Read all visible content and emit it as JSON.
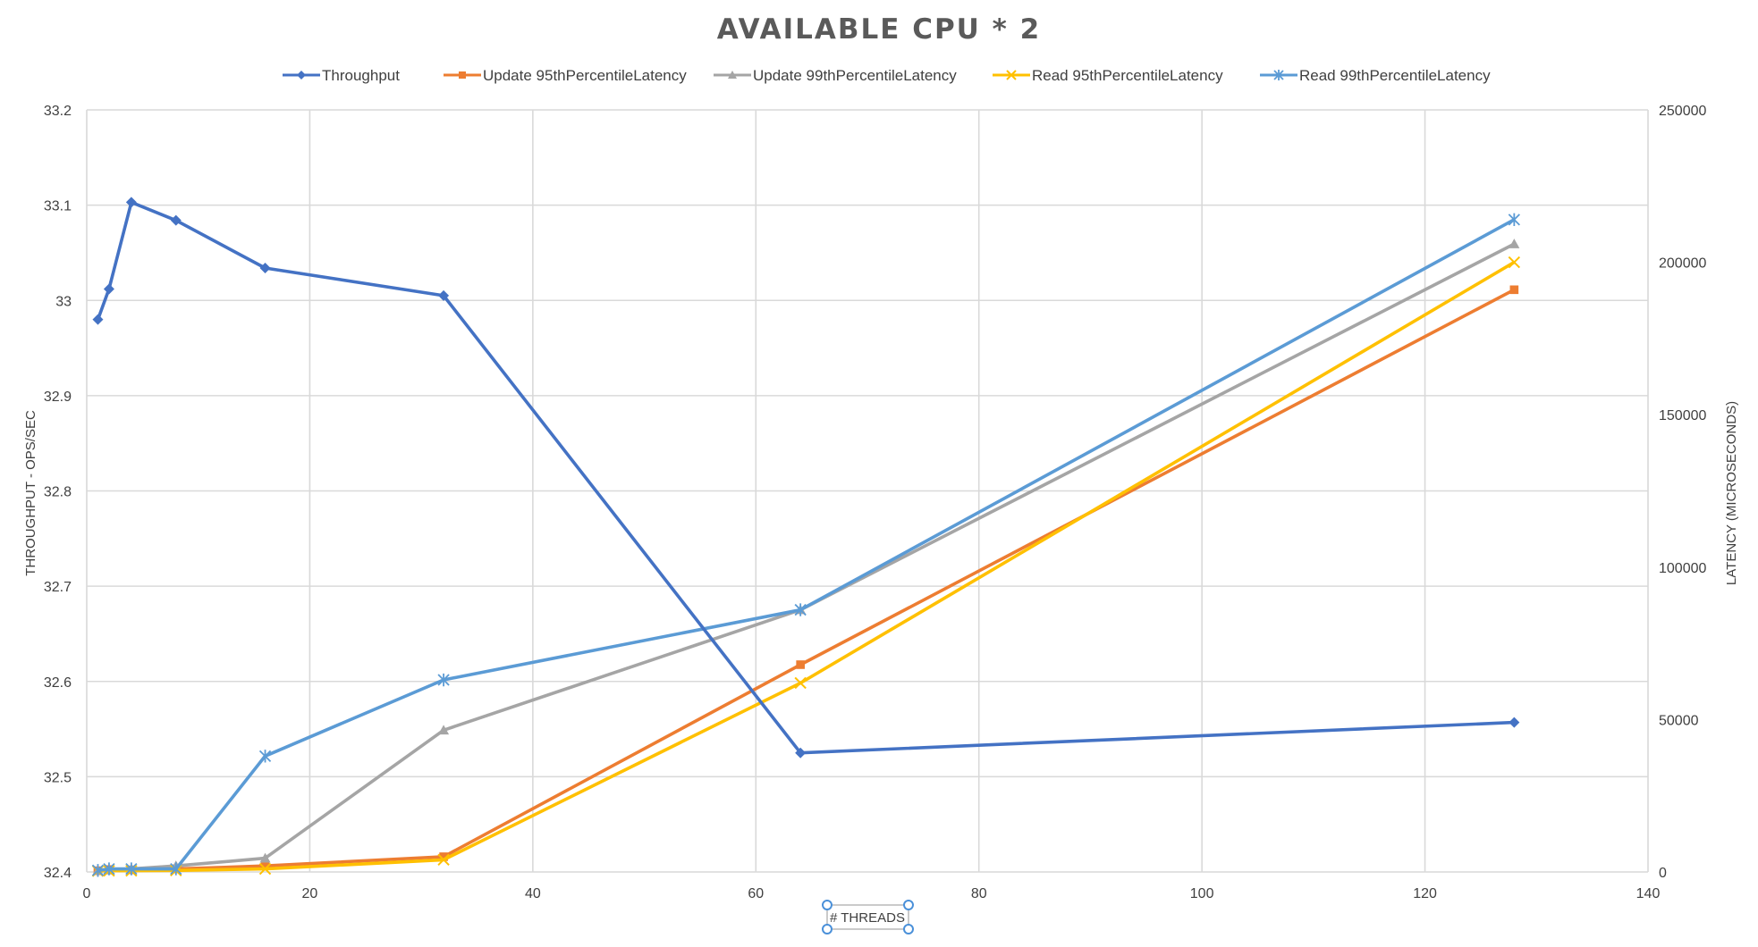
{
  "chart_data": {
    "type": "line",
    "title": "AVAILABLE CPU * 2",
    "xlabel": "# THREADS",
    "ylabel": "THROUGHPUT - OPS/SEC",
    "y2label": "LATENCY (MICROSECONDS)",
    "xlim": [
      0,
      140
    ],
    "ylim": [
      32.4,
      33.2
    ],
    "y2lim": [
      0,
      250000
    ],
    "x_ticks": [
      "0",
      "20",
      "40",
      "60",
      "80",
      "100",
      "120",
      "140"
    ],
    "y_ticks": [
      "32.4",
      "32.5",
      "32.6",
      "32.7",
      "32.8",
      "32.9",
      "33",
      "33.1",
      "33.2"
    ],
    "y2_ticks": [
      "0",
      "50000",
      "100000",
      "150000",
      "200000",
      "250000"
    ],
    "grid": true,
    "legend_position": "top",
    "series": [
      {
        "name": "Throughput",
        "axis": "left",
        "color": "#4472c4",
        "marker": "diamond",
        "x": [
          1,
          2,
          4,
          8,
          16,
          32,
          64,
          128
        ],
        "values": [
          32.98,
          33.012,
          33.103,
          33.084,
          33.034,
          33.005,
          32.525,
          32.557
        ]
      },
      {
        "name": "Update 95thPercentileLatency",
        "axis": "right",
        "color": "#ed7d31",
        "marker": "square",
        "x": [
          1,
          2,
          4,
          8,
          16,
          32,
          64,
          128
        ],
        "values": [
          400,
          800,
          700,
          1000,
          2000,
          5000,
          68000,
          191000
        ]
      },
      {
        "name": "Update 99thPercentileLatency",
        "axis": "right",
        "color": "#a5a5a5",
        "marker": "triangle",
        "x": [
          1,
          2,
          4,
          8,
          16,
          32,
          64,
          128
        ],
        "values": [
          500,
          600,
          1000,
          2000,
          4500,
          46500,
          86000,
          206000
        ]
      },
      {
        "name": "Read 95thPercentileLatency",
        "axis": "right",
        "color": "#ffc000",
        "marker": "x",
        "x": [
          1,
          2,
          4,
          8,
          16,
          32,
          64,
          128
        ],
        "values": [
          300,
          400,
          400,
          500,
          1000,
          4000,
          62000,
          200000
        ]
      },
      {
        "name": "Read 99thPercentileLatency",
        "axis": "right",
        "color": "#5b9bd5",
        "marker": "star",
        "x": [
          1,
          2,
          4,
          8,
          16,
          32,
          64,
          128
        ],
        "values": [
          500,
          1000,
          1000,
          1000,
          38000,
          63000,
          86000,
          214000
        ]
      }
    ]
  }
}
